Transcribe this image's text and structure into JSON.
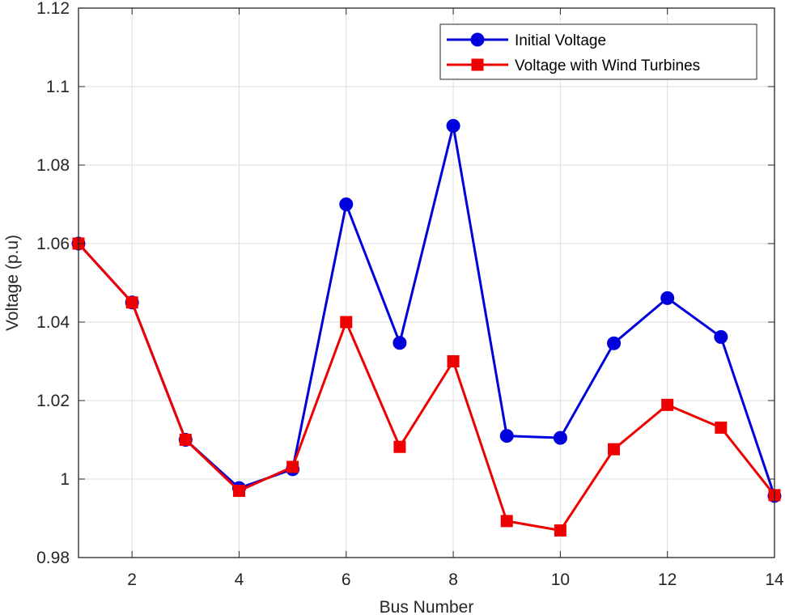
{
  "chart_data": {
    "type": "line",
    "title": "",
    "xlabel": "Bus Number",
    "ylabel": "Voltage (p.u)",
    "xlim": [
      1,
      14
    ],
    "ylim": [
      0.98,
      1.12
    ],
    "xticks": [
      2,
      4,
      6,
      8,
      10,
      12,
      14
    ],
    "yticks": [
      0.98,
      1.0,
      1.02,
      1.04,
      1.06,
      1.08,
      1.1,
      1.12
    ],
    "xtick_labels": [
      "2",
      "4",
      "6",
      "8",
      "10",
      "12",
      "14"
    ],
    "ytick_labels": [
      "0.98",
      "1",
      "1.02",
      "1.04",
      "1.06",
      "1.08",
      "1.1",
      "1.12"
    ],
    "grid": true,
    "legend_position": "top-right",
    "x": [
      1,
      2,
      3,
      4,
      5,
      6,
      7,
      8,
      9,
      10,
      11,
      12,
      13,
      14
    ],
    "series": [
      {
        "name": "Initial Voltage",
        "color": "#0000dd",
        "marker": "circle",
        "values": [
          1.06,
          1.045,
          1.01,
          0.9977,
          1.0025,
          1.07,
          1.0347,
          1.09,
          1.011,
          1.0105,
          1.0346,
          1.0461,
          1.0362,
          0.9957
        ]
      },
      {
        "name": "Voltage with Wind Turbines",
        "color": "#ee0000",
        "marker": "square",
        "values": [
          1.06,
          1.045,
          1.01,
          0.997,
          1.0031,
          1.04,
          1.0082,
          1.03,
          0.9893,
          0.9869,
          1.0076,
          1.0189,
          1.0131,
          0.9959
        ]
      }
    ]
  }
}
